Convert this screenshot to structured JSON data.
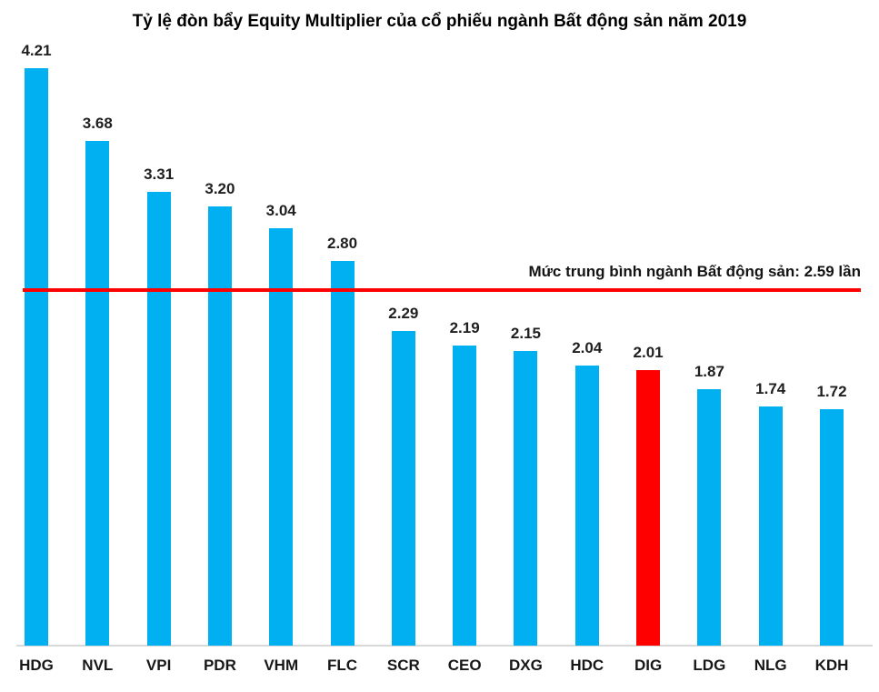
{
  "chart_data": {
    "type": "bar",
    "title": "Tỷ lệ đòn bẩy Equity Multiplier của cổ phiếu ngành Bất động sản năm 2019",
    "categories": [
      "HDG",
      "NVL",
      "VPI",
      "PDR",
      "VHM",
      "FLC",
      "SCR",
      "CEO",
      "DXG",
      "HDC",
      "DIG",
      "LDG",
      "NLG",
      "KDH"
    ],
    "values": [
      4.21,
      3.68,
      3.31,
      3.2,
      3.04,
      2.8,
      2.29,
      2.19,
      2.15,
      2.04,
      2.01,
      1.87,
      1.74,
      1.72
    ],
    "xlabel": "",
    "ylabel": "",
    "ylim": [
      0,
      4.5
    ],
    "grid": false,
    "legend": "none",
    "data_labels": true,
    "bar_color": "#00B0F0",
    "highlight_category": "DIG",
    "highlight_color": "#FF0000",
    "average_line": {
      "value": 2.59,
      "label": "Mức trung bình ngành Bất động sản: 2.59 lần",
      "color": "#FF0000"
    },
    "axis_line_color": "#D9D9D9",
    "background_color": "#FFFFFF",
    "label_text_color": "#1F1F1F"
  }
}
